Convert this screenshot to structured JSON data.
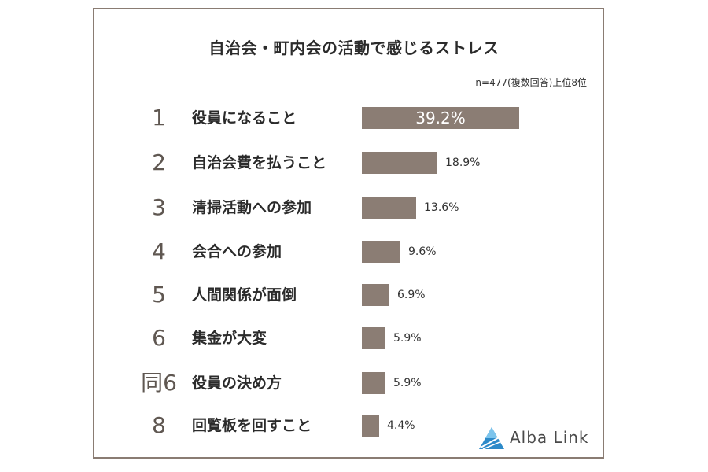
{
  "chart_data": {
    "type": "bar",
    "title": "自治会・町内会の活動で感じるストレス",
    "subtitle": "n=477(複数回答)上位8位",
    "ranks": [
      "1",
      "2",
      "3",
      "4",
      "5",
      "6",
      "同6",
      "8"
    ],
    "categories": [
      "役員になること",
      "自治会費を払うこと",
      "清掃活動への参加",
      "会合への参加",
      "人間関係が面倒",
      "集金が大変",
      "役員の決め方",
      "回覧板を回すこと"
    ],
    "values": [
      39.2,
      18.9,
      13.6,
      9.6,
      6.9,
      5.9,
      5.9,
      4.4
    ],
    "value_labels": [
      "39.2%",
      "18.9%",
      "13.6%",
      "9.6%",
      "6.9%",
      "5.9%",
      "5.9%",
      "4.4%"
    ],
    "orientation": "horizontal",
    "xlim": [
      0,
      39.2
    ],
    "grid": false,
    "bar_color": "#8b7d74"
  },
  "branding": {
    "logo_text": "Alba Link",
    "logo_icon": "alba-link-triangle-icon"
  }
}
